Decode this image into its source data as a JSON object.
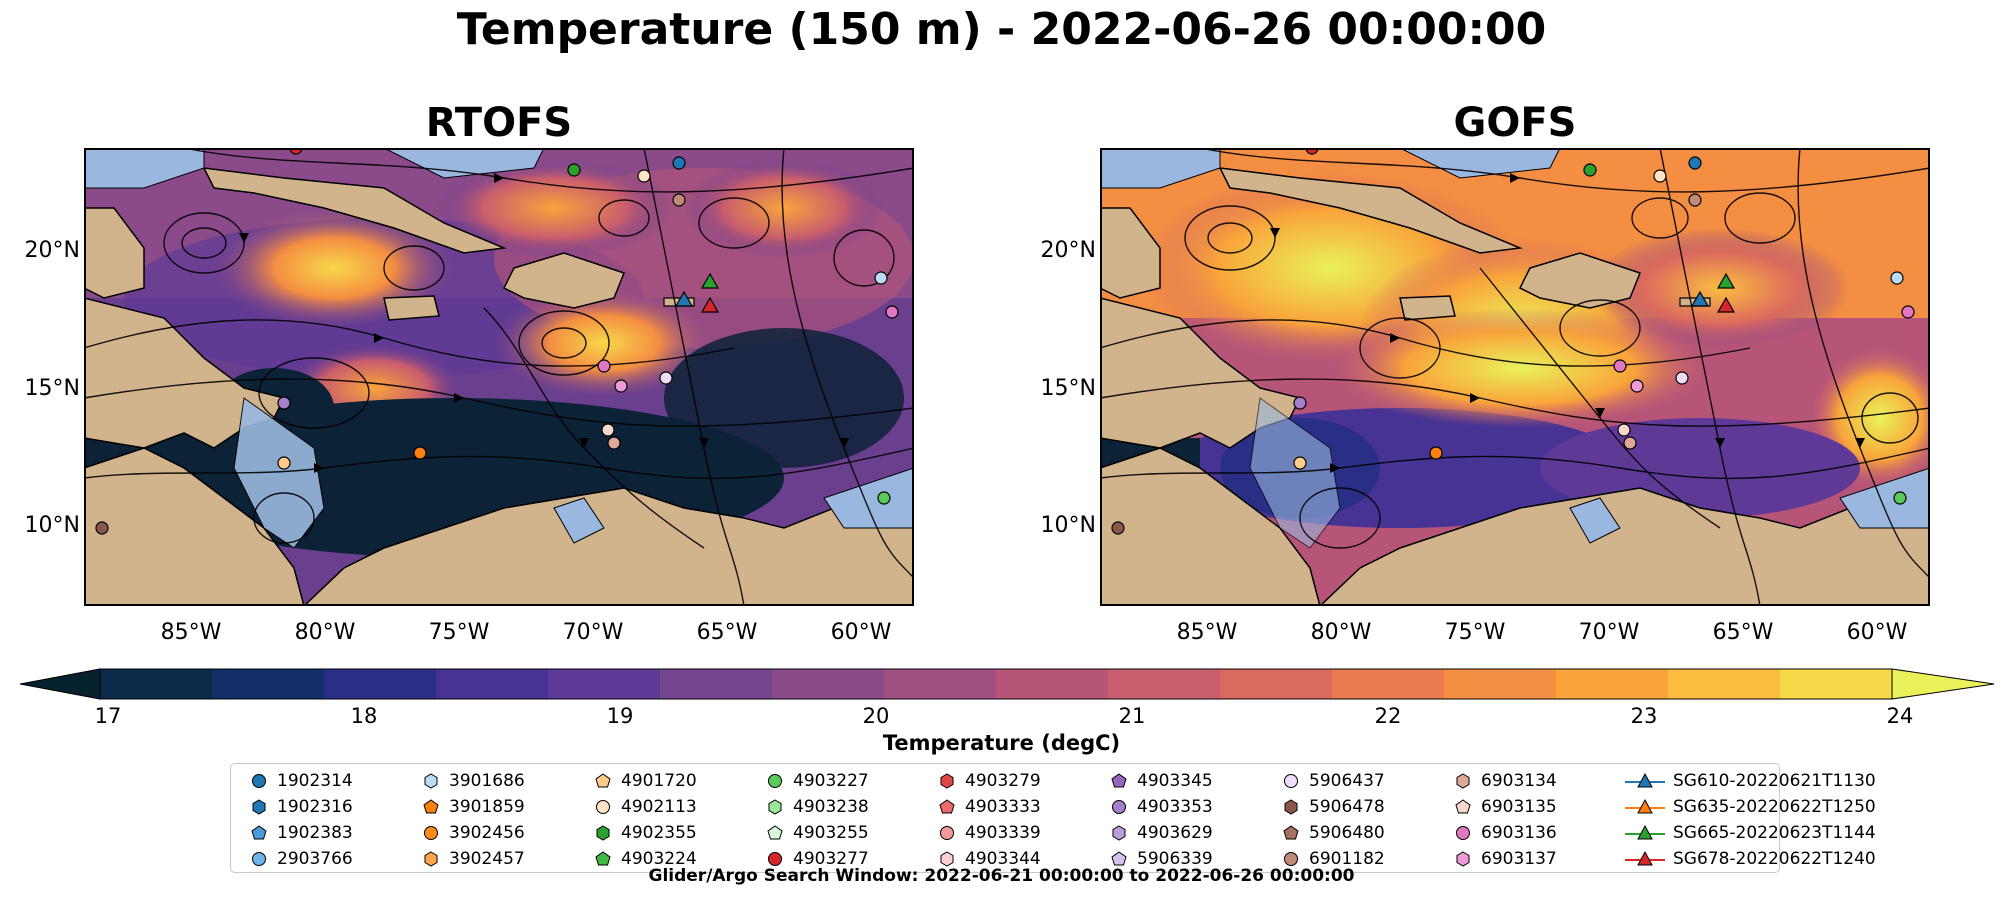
{
  "title": "Temperature (150 m) - 2022-06-26 00:00:00",
  "maps": [
    {
      "id": "rtofs",
      "title": "RTOFS"
    },
    {
      "id": "gofs",
      "title": "GOFS"
    }
  ],
  "axes": {
    "lon_ticks": [
      "85°W",
      "80°W",
      "75°W",
      "70°W",
      "65°W",
      "60°W"
    ],
    "lat_ticks": [
      "20°N",
      "15°N",
      "10°N"
    ],
    "lon_range": [
      -89,
      -58
    ],
    "lat_range": [
      7,
      24
    ]
  },
  "colorbar": {
    "label": "Temperature (degC)",
    "ticks": [
      "17",
      "18",
      "19",
      "20",
      "21",
      "22",
      "23",
      "24"
    ],
    "min": 17,
    "max": 24,
    "extend": "both",
    "colors": [
      "#0b2a4a",
      "#13306b",
      "#2a2f86",
      "#463393",
      "#5e3a96",
      "#75448f",
      "#8b4b8a",
      "#a04f81",
      "#b65578",
      "#c95e6c",
      "#db6a5e",
      "#ea7a4f",
      "#f48e42",
      "#f9a43b",
      "#fbbd40",
      "#f7d84b"
    ],
    "under_color": "#06222f",
    "over_color": "#e9f25a"
  },
  "legend": {
    "columns": [
      [
        {
          "label": "1902314",
          "marker": "circle",
          "color": "#1f77b4"
        },
        {
          "label": "1902316",
          "marker": "hexagon",
          "color": "#1f77b4"
        },
        {
          "label": "1902383",
          "marker": "pentagon",
          "color": "#4a9ad6"
        },
        {
          "label": "2903766",
          "marker": "circle",
          "color": "#6fb3e8"
        }
      ],
      [
        {
          "label": "3901686",
          "marker": "hexagon",
          "color": "#b8dcf5"
        },
        {
          "label": "3901859",
          "marker": "pentagon",
          "color": "#ff7f0e"
        },
        {
          "label": "3902456",
          "marker": "circle",
          "color": "#ff8c1a"
        },
        {
          "label": "3902457",
          "marker": "hexagon",
          "color": "#ffa64d"
        }
      ],
      [
        {
          "label": "4901720",
          "marker": "pentagon",
          "color": "#ffcc8c"
        },
        {
          "label": "4902113",
          "marker": "circle",
          "color": "#ffe3c4"
        },
        {
          "label": "4902355",
          "marker": "hexagon",
          "color": "#2ca02c"
        },
        {
          "label": "4903224",
          "marker": "pentagon",
          "color": "#44b844"
        }
      ],
      [
        {
          "label": "4903227",
          "marker": "circle",
          "color": "#5cc95c"
        },
        {
          "label": "4903238",
          "marker": "hexagon",
          "color": "#98e898"
        },
        {
          "label": "4903255",
          "marker": "pentagon",
          "color": "#d8f8d8"
        },
        {
          "label": "4903277",
          "marker": "circle",
          "color": "#d62728"
        }
      ],
      [
        {
          "label": "4903279",
          "marker": "hexagon",
          "color": "#e24545"
        },
        {
          "label": "4903333",
          "marker": "pentagon",
          "color": "#ee6a6a"
        },
        {
          "label": "4903339",
          "marker": "circle",
          "color": "#f59a9a"
        },
        {
          "label": "4903344",
          "marker": "hexagon",
          "color": "#fcd0d0"
        }
      ],
      [
        {
          "label": "4903345",
          "marker": "pentagon",
          "color": "#9467bd"
        },
        {
          "label": "4903353",
          "marker": "circle",
          "color": "#a57ecc"
        },
        {
          "label": "4903629",
          "marker": "hexagon",
          "color": "#bb9ddc"
        },
        {
          "label": "5906339",
          "marker": "pentagon",
          "color": "#d5c2ee"
        }
      ],
      [
        {
          "label": "5906437",
          "marker": "circle",
          "color": "#eeddfa"
        },
        {
          "label": "5906478",
          "marker": "hexagon",
          "color": "#8c564b"
        },
        {
          "label": "5906480",
          "marker": "pentagon",
          "color": "#a7705f"
        },
        {
          "label": "6901182",
          "marker": "circle",
          "color": "#c08a79"
        }
      ],
      [
        {
          "label": "6903134",
          "marker": "hexagon",
          "color": "#e0a898"
        },
        {
          "label": "6903135",
          "marker": "pentagon",
          "color": "#f8d8cc"
        },
        {
          "label": "6903136",
          "marker": "circle",
          "color": "#e377c2"
        },
        {
          "label": "6903137",
          "marker": "hexagon",
          "color": "#ee9ad6"
        }
      ],
      [
        {
          "label": "SG610-20220621T1130",
          "marker": "triangle-line",
          "color": "#1f77b4"
        },
        {
          "label": "SG635-20220622T1250",
          "marker": "triangle-line",
          "color": "#ff7f0e"
        },
        {
          "label": "SG665-20220623T1144",
          "marker": "triangle-line",
          "color": "#2ca02c"
        },
        {
          "label": "SG678-20220622T1240",
          "marker": "triangle-line",
          "color": "#d62728"
        }
      ]
    ]
  },
  "footnote": "Glider/Argo Search Window: 2022-06-21 00:00:00 to 2022-06-26 00:00:00",
  "colors": {
    "land": "#d2b48c",
    "shelf": "#9ab8df",
    "coast": "#000000"
  }
}
